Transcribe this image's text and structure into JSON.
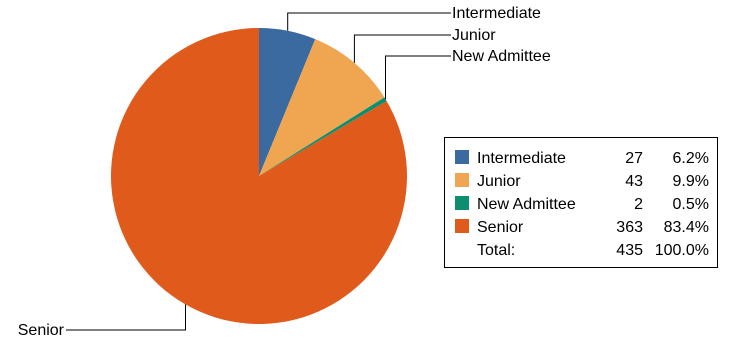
{
  "chart_data": {
    "type": "pie",
    "title": "",
    "categories": [
      "Intermediate",
      "Junior",
      "New Admittee",
      "Senior"
    ],
    "values": [
      27,
      43,
      2,
      363
    ],
    "percentages": [
      "6.2%",
      "9.9%",
      "0.5%",
      "83.4%"
    ],
    "colors": [
      "#3b6aa0",
      "#f0a550",
      "#0b8f6e",
      "#e05a1c"
    ],
    "callout_labels": [
      "Intermediate",
      "Junior",
      "New Admittee",
      "Senior"
    ],
    "legend": {
      "placement": "right",
      "rows": [
        {
          "name": "Intermediate",
          "count": "27",
          "percent": "6.2%"
        },
        {
          "name": "Junior",
          "count": "43",
          "percent": "9.9%"
        },
        {
          "name": "New Admittee",
          "count": "2",
          "percent": "0.5%"
        },
        {
          "name": "Senior",
          "count": "363",
          "percent": "83.4%"
        }
      ],
      "total_label": "Total:",
      "total_count": "435",
      "total_percent": "100.0%"
    }
  }
}
